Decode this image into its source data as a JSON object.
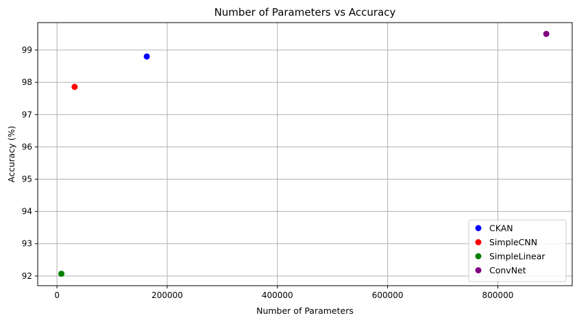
{
  "chart_data": {
    "type": "scatter",
    "title": "Number of Parameters vs Accuracy",
    "xlabel": "Number of Parameters",
    "ylabel": "Accuracy (%)",
    "xlim": [
      -35000,
      935000
    ],
    "ylim": [
      91.7,
      99.85
    ],
    "grid": true,
    "legend_position": "bottom-right",
    "x_ticks": [
      {
        "value": 0,
        "label": "0"
      },
      {
        "value": 200000,
        "label": "200000"
      },
      {
        "value": 400000,
        "label": "400000"
      },
      {
        "value": 600000,
        "label": "600000"
      },
      {
        "value": 800000,
        "label": "800000"
      }
    ],
    "y_ticks": [
      {
        "value": 92,
        "label": "92"
      },
      {
        "value": 93,
        "label": "93"
      },
      {
        "value": 94,
        "label": "94"
      },
      {
        "value": 95,
        "label": "95"
      },
      {
        "value": 96,
        "label": "96"
      },
      {
        "value": 97,
        "label": "97"
      },
      {
        "value": 98,
        "label": "98"
      },
      {
        "value": 99,
        "label": "99"
      }
    ],
    "series": [
      {
        "name": "CKAN",
        "color": "#0000ff",
        "x": 163000,
        "y": 98.8
      },
      {
        "name": "SimpleCNN",
        "color": "#ff0000",
        "x": 32000,
        "y": 97.86
      },
      {
        "name": "SimpleLinear",
        "color": "#008000",
        "x": 8000,
        "y": 92.07
      },
      {
        "name": "ConvNet",
        "color": "#800080",
        "x": 888000,
        "y": 99.5
      }
    ]
  }
}
